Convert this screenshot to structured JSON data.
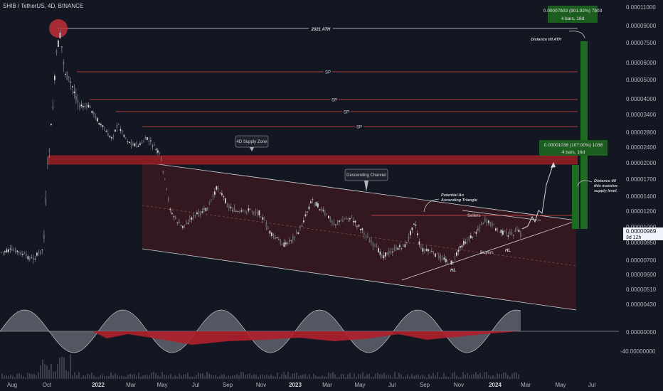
{
  "header": {
    "title": "SHIB / TetherUS, 4D, BINANCE"
  },
  "chart_data": {
    "type": "candlestick",
    "symbol": "SHIB / TetherUS",
    "interval": "4D",
    "exchange": "BINANCE",
    "y_scale": "log",
    "ylim": [
      4.3e-06,
      1.1e-05
    ],
    "price_ticks": [
      "0.00011000",
      "0.00009000",
      "0.00007500",
      "0.00006000",
      "0.00005000",
      "0.00004000",
      "0.00003400",
      "0.00002800",
      "0.00002400",
      "0.00002000",
      "0.00001700",
      "0.00001400",
      "0.00001200",
      "0.00001000",
      "0.00000850",
      "0.00000700",
      "0.00000600",
      "0.00000510",
      "0.00000430"
    ],
    "osc_ticks": [
      "0.00000000",
      "-40.00000000"
    ],
    "time_labels": [
      "Aug",
      "Oct",
      "2022",
      "Mar",
      "May",
      "Jul",
      "Sep",
      "Nov",
      "2023",
      "Mar",
      "May",
      "Jul",
      "Sep",
      "Nov",
      "2024",
      "Mar",
      "May",
      "Jul"
    ],
    "current_price": "0.00000969",
    "countdown": "3d 12h",
    "measures": [
      {
        "line1": "0.00007803 (801.92%) 7803",
        "line2": "4 bars, 16d"
      },
      {
        "line1": "0.00001038 (107.00%) 1038",
        "line2": "4 bars, 16d"
      }
    ],
    "annotations": {
      "ath": "2021 ATH",
      "sp": "SP",
      "supply_zone": "4D Supply Zone",
      "channel": "Descending Channel",
      "triangle": [
        "Potential An",
        "Ascending Triangle"
      ],
      "sellers": "Sellers",
      "buyers": "Buyers",
      "hl": "HL",
      "dist_ath": "Distance till ATH",
      "dist_supply": [
        "Distance till",
        "this massive",
        "supply level."
      ]
    },
    "colors": {
      "background": "#131722",
      "candle": "#b2b5be",
      "sp_line": "#e54b4b",
      "supply_zone": "#8b1e24",
      "channel_fill": "#3a1a1e",
      "measure_green": "#1e6b22",
      "osc_grey": "#8a8d96",
      "osc_red": "#b0202b",
      "label_bg": "#eaeaea"
    }
  }
}
